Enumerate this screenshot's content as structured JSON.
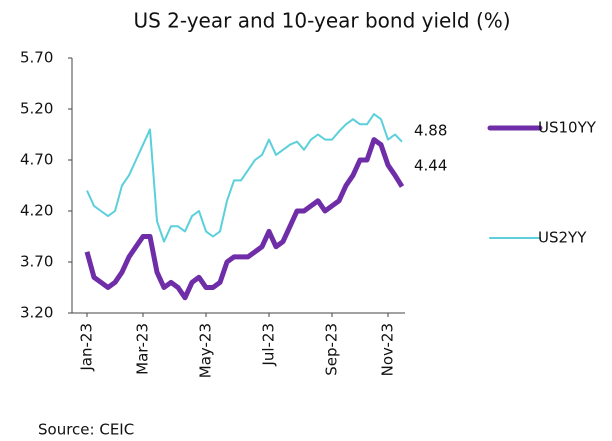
{
  "chart_data": {
    "type": "line",
    "title": "US 2-year and 10-year bond yield (%)",
    "source": "Source: CEIC",
    "categories": [
      "Jan-23",
      null,
      null,
      null,
      null,
      null,
      null,
      null,
      "Mar-23",
      null,
      null,
      null,
      null,
      null,
      null,
      null,
      null,
      "May-23",
      null,
      null,
      null,
      null,
      null,
      null,
      null,
      null,
      "Jul-23",
      null,
      null,
      null,
      null,
      null,
      null,
      null,
      null,
      "Sep-23",
      null,
      null,
      null,
      null,
      null,
      null,
      null,
      "Nov-23",
      null,
      null
    ],
    "series": [
      {
        "name": "US10YY",
        "color": "#6f2da8",
        "values": [
          3.8,
          3.55,
          3.5,
          3.45,
          3.5,
          3.6,
          3.75,
          3.85,
          3.95,
          3.95,
          3.6,
          3.45,
          3.5,
          3.45,
          3.35,
          3.5,
          3.55,
          3.45,
          3.45,
          3.5,
          3.7,
          3.75,
          3.75,
          3.75,
          3.8,
          3.85,
          4.0,
          3.85,
          3.9,
          4.05,
          4.2,
          4.2,
          4.25,
          4.3,
          4.2,
          4.25,
          4.3,
          4.45,
          4.55,
          4.7,
          4.7,
          4.9,
          4.85,
          4.65,
          4.55,
          4.44
        ]
      },
      {
        "name": "US2YY",
        "color": "#5bd0db",
        "values": [
          4.4,
          4.25,
          4.2,
          4.15,
          4.2,
          4.45,
          4.55,
          4.7,
          4.85,
          5.0,
          4.1,
          3.9,
          4.05,
          4.05,
          4.0,
          4.15,
          4.2,
          4.0,
          3.95,
          4.0,
          4.3,
          4.5,
          4.5,
          4.6,
          4.7,
          4.75,
          4.9,
          4.75,
          4.8,
          4.85,
          4.88,
          4.8,
          4.9,
          4.95,
          4.9,
          4.9,
          4.98,
          5.05,
          5.1,
          5.05,
          5.05,
          5.15,
          5.1,
          4.9,
          4.95,
          4.88
        ]
      }
    ],
    "ylim": [
      3.2,
      5.7
    ],
    "yticks": [
      {
        "value": 3.2,
        "label": "3.20"
      },
      {
        "value": 3.7,
        "label": "3.70"
      },
      {
        "value": 4.2,
        "label": "4.20"
      },
      {
        "value": 4.7,
        "label": "4.70"
      },
      {
        "value": 5.2,
        "label": "5.20"
      },
      {
        "value": 5.7,
        "label": "5.70"
      }
    ],
    "grid": false
  }
}
